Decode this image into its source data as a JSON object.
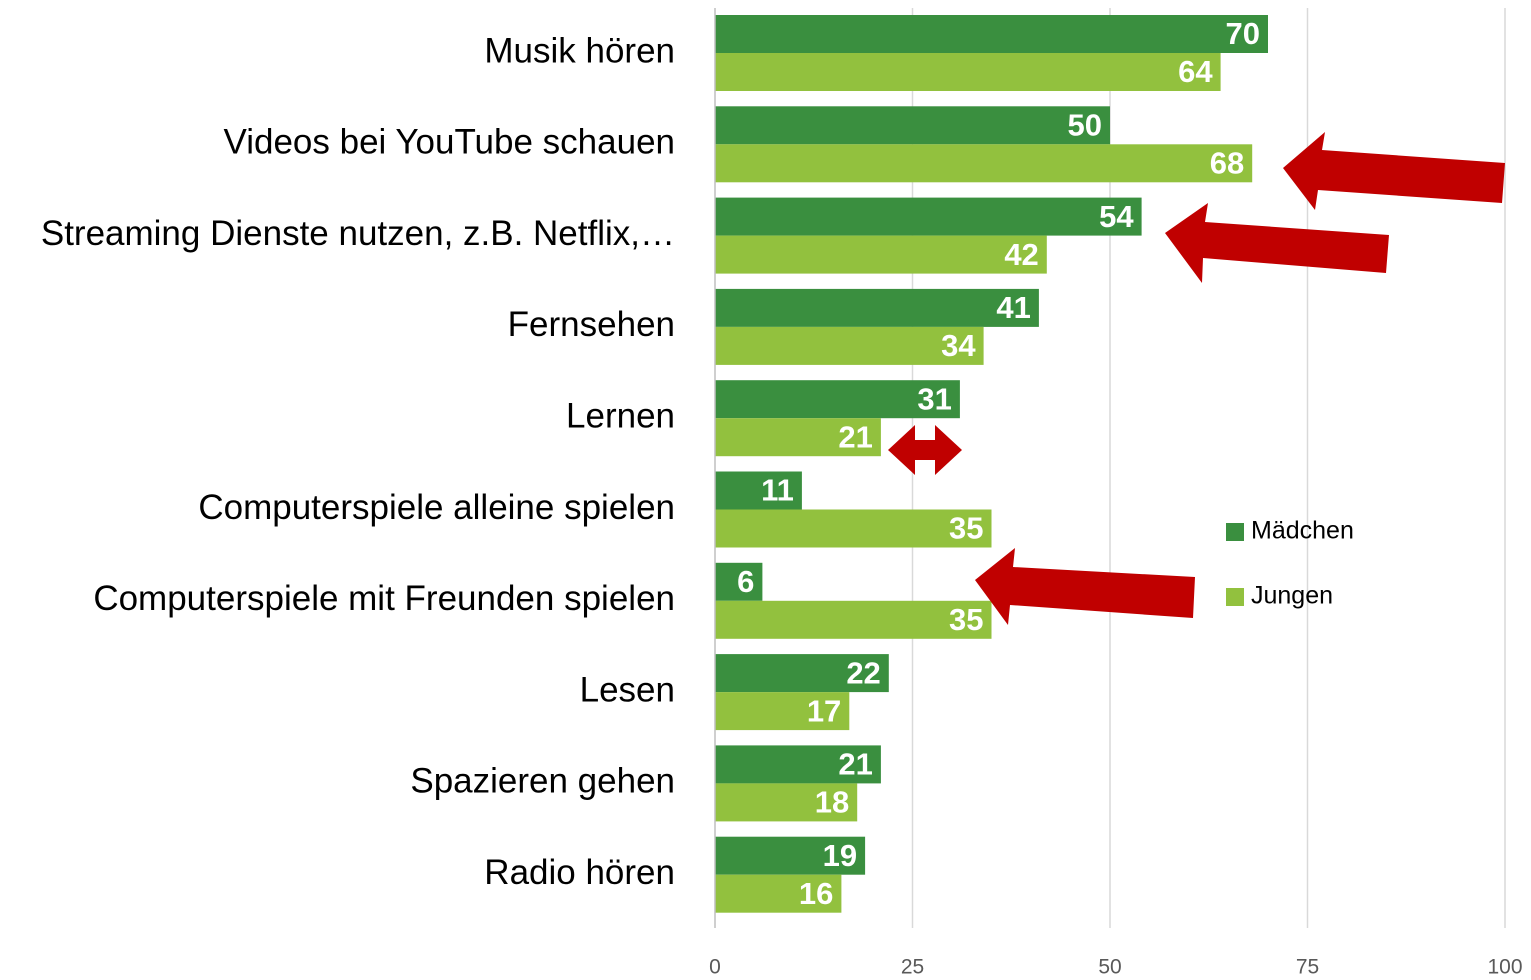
{
  "chart_data": {
    "type": "bar",
    "orientation": "horizontal",
    "categories": [
      "Musik hören",
      "Videos bei YouTube schauen",
      "Streaming Dienste nutzen, z.B. Netflix,…",
      "Fernsehen",
      "Lernen",
      "Computerspiele alleine spielen",
      "Computerspiele mit Freunden spielen",
      "Lesen",
      "Spazieren gehen",
      "Radio hören"
    ],
    "series": [
      {
        "name": "Mädchen",
        "color": "#3a8f3f",
        "values": [
          70,
          50,
          54,
          41,
          31,
          11,
          6,
          22,
          21,
          19
        ]
      },
      {
        "name": "Jungen",
        "color": "#92c13e",
        "values": [
          64,
          68,
          42,
          34,
          21,
          35,
          35,
          17,
          18,
          16
        ]
      }
    ],
    "xlim": [
      0,
      100
    ],
    "xticks": [
      0,
      25,
      50,
      75,
      100
    ],
    "grid": true,
    "legend": "right"
  }
}
